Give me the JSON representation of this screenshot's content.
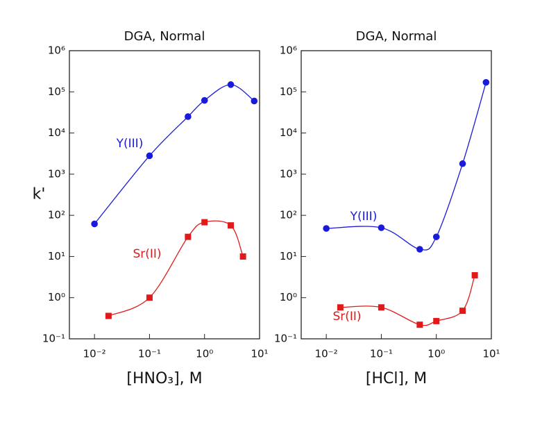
{
  "chart_data": [
    {
      "type": "line",
      "title": "DGA, Normal",
      "x_label": "[HNO₃], M",
      "y_label": "k'",
      "xscale": "log",
      "yscale": "log",
      "xlim": [
        0.0035,
        10
      ],
      "ylim": [
        0.1,
        1000000
      ],
      "xticks": [
        {
          "value": 0.01,
          "label": "10⁻²"
        },
        {
          "value": 0.1,
          "label": "10⁻¹"
        },
        {
          "value": 1,
          "label": "10⁰"
        },
        {
          "value": 10,
          "label": "10¹"
        }
      ],
      "yticks": [
        {
          "value": 0.1,
          "label": "10⁻¹"
        },
        {
          "value": 1,
          "label": "10⁰"
        },
        {
          "value": 10,
          "label": "10¹"
        },
        {
          "value": 100,
          "label": "10²"
        },
        {
          "value": 1000,
          "label": "10³"
        },
        {
          "value": 10000,
          "label": "10⁴"
        },
        {
          "value": 100000,
          "label": "10⁵"
        },
        {
          "value": 1000000,
          "label": "10⁶"
        }
      ],
      "series": [
        {
          "name": "Y(III)",
          "color": "#1a1adb",
          "marker": "circle",
          "x": [
            0.01,
            0.1,
            0.5,
            1,
            3,
            8
          ],
          "values": [
            62,
            2800,
            25000,
            62000,
            150000,
            60000
          ]
        },
        {
          "name": "Sr(II)",
          "color": "#e01a1a",
          "marker": "square",
          "x": [
            0.018,
            0.1,
            0.5,
            1,
            3,
            5
          ],
          "values": [
            0.36,
            1.0,
            30,
            68,
            57,
            10
          ]
        }
      ]
    },
    {
      "type": "line",
      "title": "DGA, Normal",
      "x_label": "[HCl], M",
      "xscale": "log",
      "yscale": "log",
      "xlim": [
        0.0035,
        10
      ],
      "ylim": [
        0.1,
        1000000
      ],
      "xticks": [
        {
          "value": 0.01,
          "label": "10⁻²"
        },
        {
          "value": 0.1,
          "label": "10⁻¹"
        },
        {
          "value": 1,
          "label": "10⁰"
        },
        {
          "value": 10,
          "label": "10¹"
        }
      ],
      "yticks": [
        {
          "value": 0.1,
          "label": "10⁻¹"
        },
        {
          "value": 1,
          "label": "10⁰"
        },
        {
          "value": 10,
          "label": "10¹"
        },
        {
          "value": 100,
          "label": "10²"
        },
        {
          "value": 1000,
          "label": "10³"
        },
        {
          "value": 10000,
          "label": "10⁴"
        },
        {
          "value": 100000,
          "label": "10⁵"
        },
        {
          "value": 1000000,
          "label": "10⁶"
        }
      ],
      "series": [
        {
          "name": "Y(III)",
          "color": "#1a1adb",
          "marker": "circle",
          "x": [
            0.01,
            0.1,
            0.5,
            1,
            3,
            8
          ],
          "values": [
            48,
            50,
            15,
            30,
            1800,
            170000
          ]
        },
        {
          "name": "Sr(II)",
          "color": "#e01a1a",
          "marker": "square",
          "x": [
            0.018,
            0.1,
            0.5,
            1,
            3,
            5
          ],
          "values": [
            0.58,
            0.58,
            0.22,
            0.27,
            0.48,
            3.5
          ]
        }
      ]
    }
  ]
}
